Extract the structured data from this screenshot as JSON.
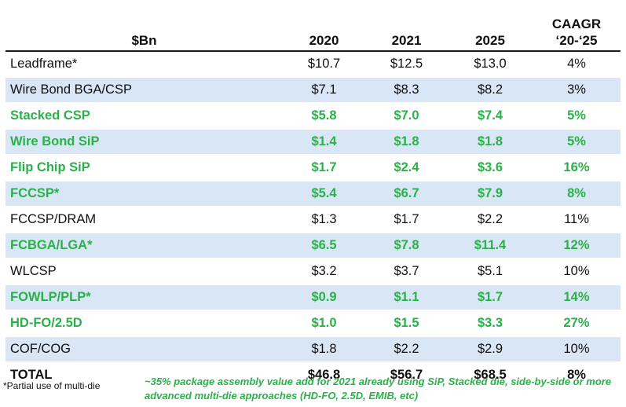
{
  "header": {
    "label": "$Bn",
    "y2020": "2020",
    "y2021": "2021",
    "y2025": "2025",
    "caagr_line1": "CAAGR",
    "caagr_line2": "‘20-‘25"
  },
  "rows": [
    {
      "name": "Leadframe*",
      "v2020": "$10.7",
      "v2021": "$12.5",
      "v2025": "$13.0",
      "caagr": "4%",
      "highlight": false,
      "shaded": false
    },
    {
      "name": "Wire Bond BGA/CSP",
      "v2020": "$7.1",
      "v2021": "$8.3",
      "v2025": "$8.2",
      "caagr": "3%",
      "highlight": false,
      "shaded": true
    },
    {
      "name": "Stacked CSP",
      "v2020": "$5.8",
      "v2021": "$7.0",
      "v2025": "$7.4",
      "caagr": "5%",
      "highlight": true,
      "shaded": false
    },
    {
      "name": "Wire Bond SiP",
      "v2020": "$1.4",
      "v2021": "$1.8",
      "v2025": "$1.8",
      "caagr": "5%",
      "highlight": true,
      "shaded": true
    },
    {
      "name": "Flip Chip SiP",
      "v2020": "$1.7",
      "v2021": "$2.4",
      "v2025": "$3.6",
      "caagr": "16%",
      "highlight": true,
      "shaded": false
    },
    {
      "name": "FCCSP*",
      "v2020": "$5.4",
      "v2021": "$6.7",
      "v2025": "$7.9",
      "caagr": "8%",
      "highlight": true,
      "shaded": true
    },
    {
      "name": "FCCSP/DRAM",
      "v2020": "$1.3",
      "v2021": "$1.7",
      "v2025": "$2.2",
      "caagr": "11%",
      "highlight": false,
      "shaded": false
    },
    {
      "name": "FCBGA/LGA*",
      "v2020": "$6.5",
      "v2021": "$7.8",
      "v2025": "$11.4",
      "caagr": "12%",
      "highlight": true,
      "shaded": true
    },
    {
      "name": "WLCSP",
      "v2020": "$3.2",
      "v2021": "$3.7",
      "v2025": "$5.1",
      "caagr": "10%",
      "highlight": false,
      "shaded": false
    },
    {
      "name": "FOWLP/PLP*",
      "v2020": "$0.9",
      "v2021": "$1.1",
      "v2025": "$1.7",
      "caagr": "14%",
      "highlight": true,
      "shaded": true
    },
    {
      "name": "HD-FO/2.5D",
      "v2020": "$1.0",
      "v2021": "$1.5",
      "v2025": "$3.3",
      "caagr": "27%",
      "highlight": true,
      "shaded": false
    },
    {
      "name": "COF/COG",
      "v2020": "$1.8",
      "v2021": "$2.2",
      "v2025": "$2.9",
      "caagr": "10%",
      "highlight": false,
      "shaded": true
    }
  ],
  "total": {
    "name": "TOTAL",
    "v2020": "$46.8",
    "v2021": "$56.7",
    "v2025": "$68.5",
    "caagr": "8%"
  },
  "footnote": "*Partial use of multi-die",
  "note": "~35% package assembly value add for 2021 already using SiP, Stacked die, side-by-side or more advanced multi-die approaches (HD-FO, 2.5D, EMIB, etc)",
  "colors": {
    "green": "#2bb14a",
    "shade": "#d9e6f5"
  }
}
